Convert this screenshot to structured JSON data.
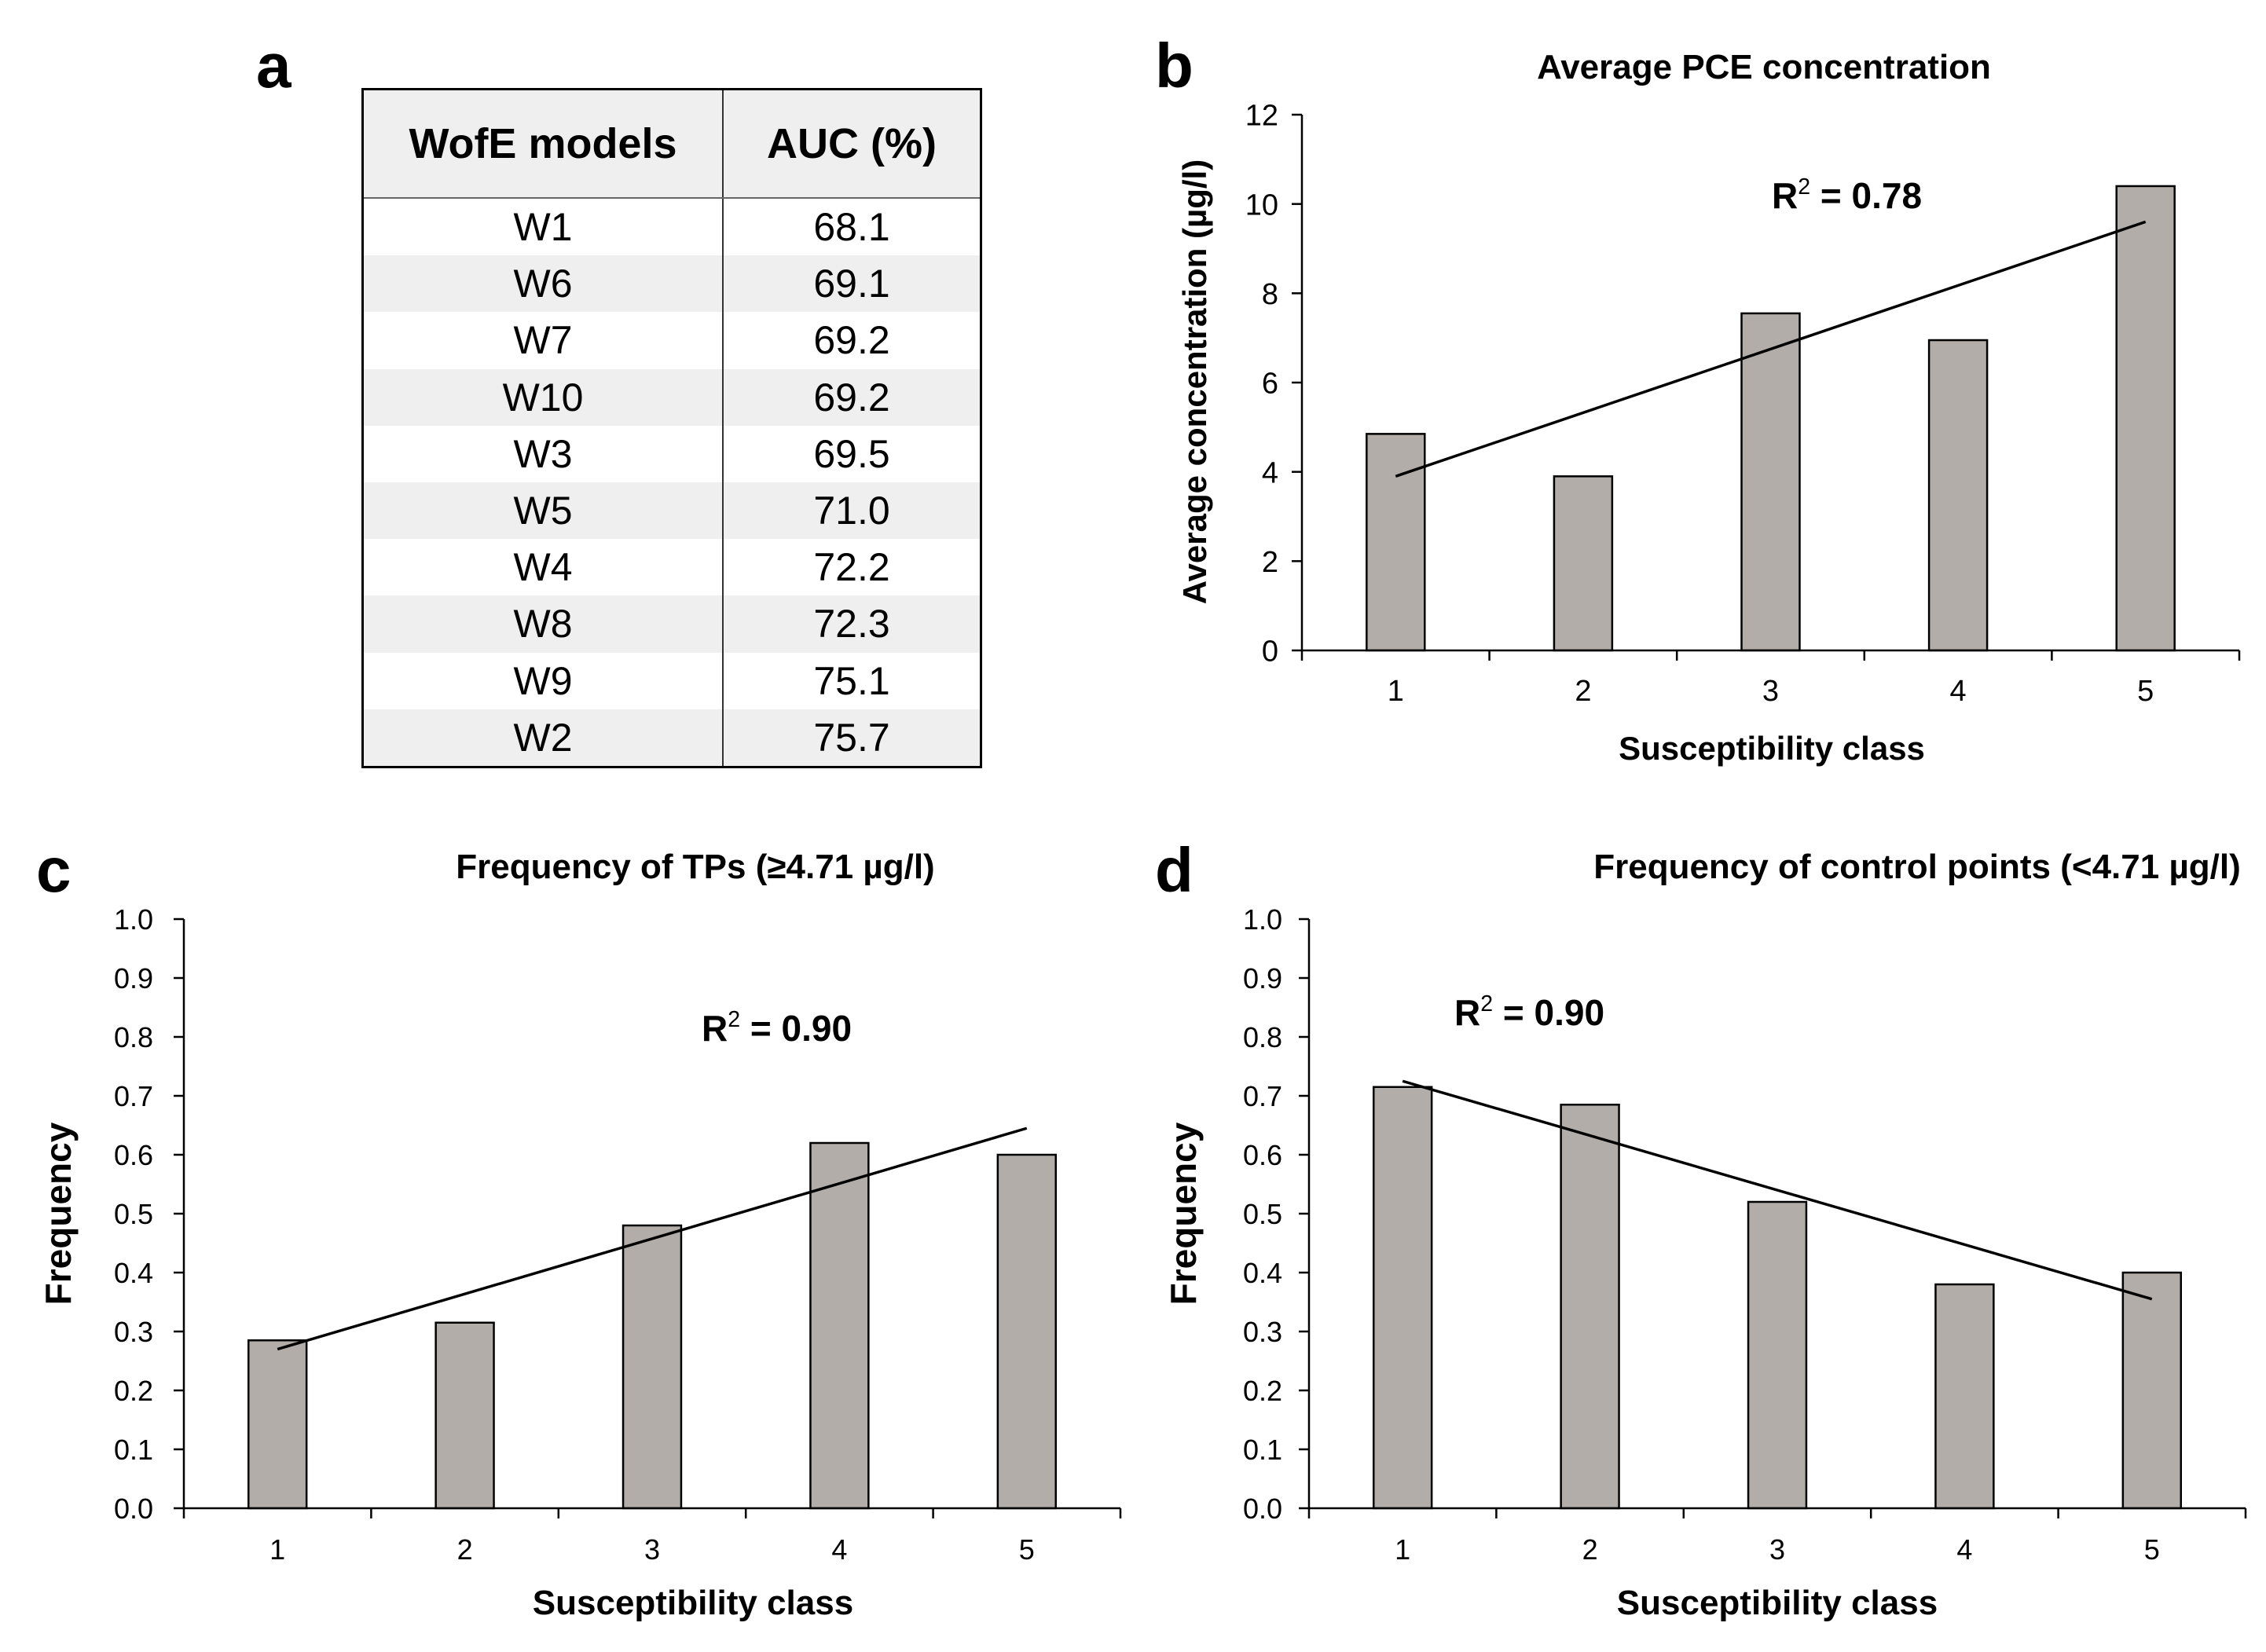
{
  "panels": {
    "a": "a",
    "b": "b",
    "c": "c",
    "d": "d"
  },
  "table": {
    "headers": [
      "WofE models",
      "AUC (%)"
    ],
    "rows": [
      [
        "W1",
        "68.1"
      ],
      [
        "W6",
        "69.1"
      ],
      [
        "W7",
        "69.2"
      ],
      [
        "W10",
        "69.2"
      ],
      [
        "W3",
        "69.5"
      ],
      [
        "W5",
        "71.0"
      ],
      [
        "W4",
        "72.2"
      ],
      [
        "W8",
        "72.3"
      ],
      [
        "W9",
        "75.1"
      ],
      [
        "W2",
        "75.7"
      ]
    ]
  },
  "chart_data": [
    {
      "id": "b",
      "type": "bar",
      "title": "Average PCE concentration",
      "xlabel": "Susceptibility class",
      "ylabel": "Average concentration (µg/l)",
      "categories": [
        "1",
        "2",
        "3",
        "4",
        "5"
      ],
      "values": [
        4.85,
        3.9,
        7.55,
        6.95,
        10.4
      ],
      "ylim": [
        0,
        12
      ],
      "yticks": [
        0,
        2,
        4,
        6,
        8,
        10,
        12
      ],
      "ytick_labels": [
        "0",
        "2",
        "4",
        "6",
        "8",
        "10",
        "12"
      ],
      "trendline": {
        "start": [
          1,
          3.9
        ],
        "end": [
          5,
          9.6
        ]
      },
      "annotation": {
        "label": "R",
        "sup": "2",
        "value": " = 0.78"
      },
      "bar_color": "#b3adaa"
    },
    {
      "id": "c",
      "type": "bar",
      "title": "Frequency of TPs (≥4.71 µg/l)",
      "xlabel": "Susceptibility class",
      "ylabel": "Frequency",
      "categories": [
        "1",
        "2",
        "3",
        "4",
        "5"
      ],
      "values": [
        0.285,
        0.315,
        0.48,
        0.62,
        0.6
      ],
      "ylim": [
        0,
        1.0
      ],
      "yticks": [
        0,
        0.1,
        0.2,
        0.3,
        0.4,
        0.5,
        0.6,
        0.7,
        0.8,
        0.9,
        1.0
      ],
      "ytick_labels": [
        "0.0",
        "0.1",
        "0.2",
        "0.3",
        "0.4",
        "0.5",
        "0.6",
        "0.7",
        "0.8",
        "0.9",
        "1.0"
      ],
      "trendline": {
        "start": [
          1,
          0.27
        ],
        "end": [
          5,
          0.645
        ]
      },
      "annotation": {
        "label": "R",
        "sup": "2",
        "value": " = 0.90"
      },
      "bar_color": "#b3adaa"
    },
    {
      "id": "d",
      "type": "bar",
      "title": "Frequency of control points (<4.71 µg/l)",
      "xlabel": "Susceptibility class",
      "ylabel": "Frequency",
      "categories": [
        "1",
        "2",
        "3",
        "4",
        "5"
      ],
      "values": [
        0.715,
        0.685,
        0.52,
        0.38,
        0.4
      ],
      "ylim": [
        0,
        1.0
      ],
      "yticks": [
        0,
        0.1,
        0.2,
        0.3,
        0.4,
        0.5,
        0.6,
        0.7,
        0.8,
        0.9,
        1.0
      ],
      "ytick_labels": [
        "0.0",
        "0.1",
        "0.2",
        "0.3",
        "0.4",
        "0.5",
        "0.6",
        "0.7",
        "0.8",
        "0.9",
        "1.0"
      ],
      "trendline": {
        "start": [
          1,
          0.725
        ],
        "end": [
          5,
          0.355
        ]
      },
      "annotation": {
        "label": "R",
        "sup": "2",
        "value": " = 0.90"
      },
      "bar_color": "#b3adaa"
    }
  ]
}
